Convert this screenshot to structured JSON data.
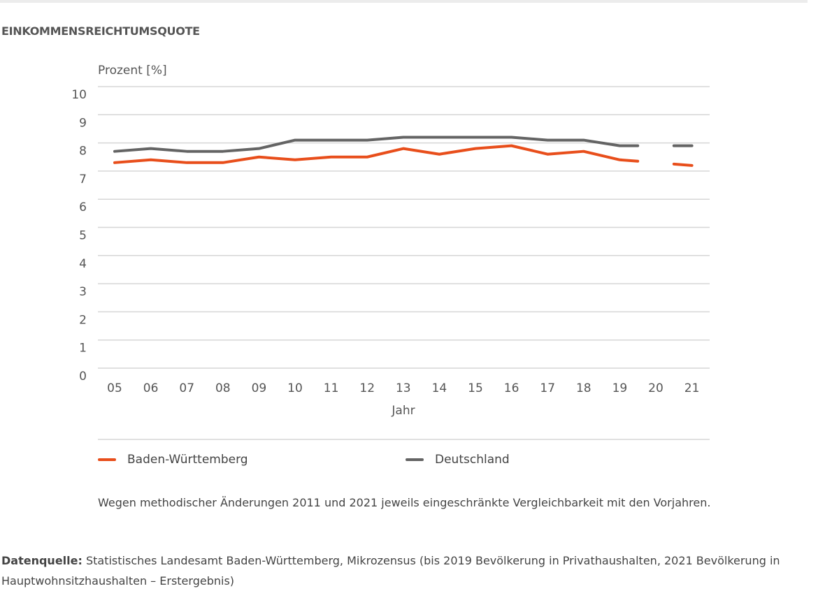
{
  "chart_data": {
    "type": "line",
    "title": "EINKOMMENSREICHTUMSQUOTE",
    "ylabel": "Prozent [%]",
    "xlabel": "Jahr",
    "ylim": [
      0,
      10
    ],
    "yticks": [
      "0",
      "1",
      "2",
      "3",
      "4",
      "5",
      "6",
      "7",
      "8",
      "9",
      "10"
    ],
    "categories": [
      "05",
      "06",
      "07",
      "08",
      "09",
      "10",
      "11",
      "12",
      "13",
      "14",
      "15",
      "16",
      "17",
      "18",
      "19",
      "20",
      "21"
    ],
    "grid": true,
    "legend_position": "bottom",
    "series": [
      {
        "name": "Baden-Württemberg",
        "color": "#e84e1b",
        "values": [
          7.3,
          7.4,
          7.3,
          7.3,
          7.5,
          7.4,
          7.5,
          7.5,
          7.8,
          7.6,
          7.8,
          7.9,
          7.6,
          7.7,
          7.4,
          null,
          7.2
        ]
      },
      {
        "name": "Deutschland",
        "color": "#646464",
        "values": [
          7.7,
          7.8,
          7.7,
          7.7,
          7.8,
          8.1,
          8.1,
          8.1,
          8.2,
          8.2,
          8.2,
          8.2,
          8.1,
          8.1,
          7.9,
          null,
          7.9
        ]
      }
    ]
  },
  "note": "Wegen methodischer Änderungen 2011 und 2021 jeweils eingeschränkte Vergleichbarkeit mit den Vorjahren.",
  "source": {
    "label": "Datenquelle:",
    "text": " Statistisches Landesamt Baden-Württemberg, Mikrozensus (bis 2019 Bevölkerung in Privathaushalten, 2021 Bevölkerung in Hauptwohnsitzhaushalten – Erstergebnis)"
  }
}
